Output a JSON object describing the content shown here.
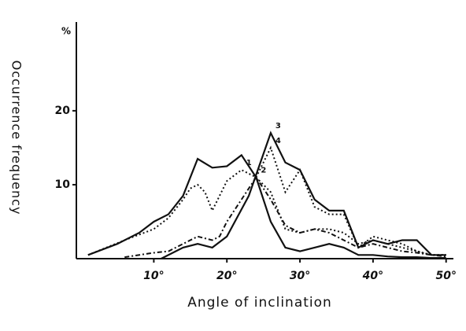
{
  "chart_data": {
    "type": "line",
    "xlabel": "Angle of inclination",
    "ylabel": "Occurrence frequency",
    "yunit": "%",
    "xlim": [
      -0.6,
      51
    ],
    "ylim": [
      0,
      32
    ],
    "xticks": [
      {
        "value": 10,
        "label": "10°"
      },
      {
        "value": 20,
        "label": "20°"
      },
      {
        "value": 30,
        "label": "30°"
      },
      {
        "value": 40,
        "label": "40°"
      },
      {
        "value": 50,
        "label": "50°"
      }
    ],
    "yticks": [
      10,
      20
    ],
    "series": [
      {
        "color": "#111",
        "style": "solid",
        "x": [
          1,
          5,
          8,
          10,
          12,
          14,
          16,
          18,
          20,
          22,
          24,
          26,
          28,
          30,
          32,
          34,
          36,
          38,
          40,
          42,
          44,
          46,
          48,
          50
        ],
        "values": [
          0.5,
          2,
          3.5,
          5,
          6,
          8.5,
          13.5,
          12.3,
          12.5,
          14,
          11,
          5,
          1.5,
          1,
          1.5,
          2,
          1.5,
          0.5,
          0.5,
          0.3,
          0.2,
          0.2,
          0.1,
          0.1
        ]
      },
      {
        "name": "1",
        "color": "#111",
        "style": "dotted",
        "x": [
          1,
          6,
          10,
          12,
          14,
          15,
          16,
          17,
          18,
          20,
          22,
          24,
          26,
          28,
          30,
          32,
          34,
          36,
          38,
          40,
          42,
          44,
          46,
          48,
          50
        ],
        "values": [
          0.5,
          2.5,
          4,
          5.5,
          8,
          9.5,
          10,
          9,
          6.5,
          10.5,
          12,
          11,
          9,
          4,
          3.5,
          4,
          4,
          3.5,
          2,
          2.5,
          2,
          1.5,
          1,
          0.5,
          0.5
        ]
      },
      {
        "name": "2",
        "color": "#111",
        "style": "dashdot",
        "x": [
          6,
          10,
          12,
          14,
          16,
          18,
          19,
          20,
          22,
          24,
          26,
          28,
          30,
          32,
          34,
          36,
          38,
          40,
          42,
          44,
          46,
          48,
          50
        ],
        "values": [
          0.2,
          0.8,
          1,
          2,
          3,
          2.5,
          3,
          5,
          8,
          11,
          8,
          4.5,
          3.5,
          4,
          3.5,
          2.5,
          1.5,
          2,
          1.5,
          1,
          0.8,
          0.5,
          0.3
        ]
      },
      {
        "name": "3",
        "color": "#111",
        "style": "solid",
        "x": [
          11,
          14,
          16,
          18,
          20,
          23,
          26,
          28,
          30,
          32,
          34,
          36,
          38,
          40,
          42,
          44,
          46,
          48,
          50
        ],
        "values": [
          0,
          1.5,
          2,
          1.5,
          3,
          8.5,
          17,
          13,
          12,
          8,
          6.5,
          6.5,
          1.5,
          2.5,
          2,
          2.5,
          2.5,
          0.5,
          0.5
        ]
      },
      {
        "name": "4",
        "color": "#111",
        "style": "dotted",
        "x": [
          24,
          26,
          28,
          30,
          32,
          34,
          36,
          38,
          40,
          42,
          44,
          46,
          48,
          50
        ],
        "values": [
          11,
          15,
          9,
          12,
          7,
          6,
          6,
          1.5,
          3,
          2.5,
          2,
          1,
          0.5,
          0.5
        ]
      }
    ]
  }
}
